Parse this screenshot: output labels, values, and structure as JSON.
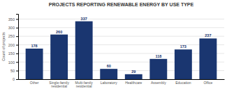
{
  "chart_data": {
    "type": "bar",
    "title": "PROJECTS REPORTING RENEWABLE ENERGY BY USE TYPE",
    "ylabel": "Count of projects",
    "categories": [
      "Other",
      "Single-family\nresidential",
      "Multi-family\nresidential",
      "Laboratory",
      "Healthcare",
      "Assembly",
      "Education",
      "Office"
    ],
    "values": [
      178,
      260,
      337,
      60,
      29,
      118,
      173,
      237
    ],
    "color": "#1a3670",
    "ylim": [
      0,
      380
    ],
    "yticks": [
      0,
      50,
      100,
      150,
      200,
      250,
      300,
      350
    ],
    "grid": true,
    "data_labels": true
  }
}
